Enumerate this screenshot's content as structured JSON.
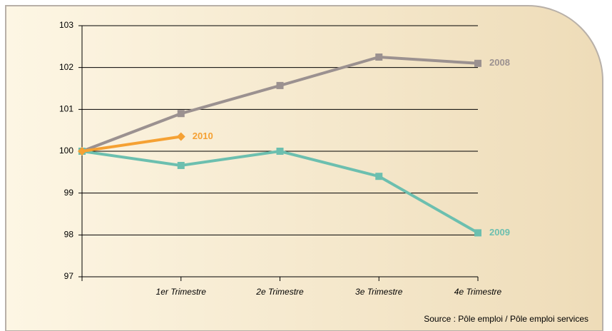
{
  "chart_data": {
    "type": "line",
    "categories": [
      null,
      "1er Trimestre",
      "2e Trimestre",
      "3e Trimestre",
      "4e Trimestre"
    ],
    "series": [
      {
        "name": "2008",
        "color": "#9b9190",
        "marker": "square",
        "values": [
          100,
          100.9,
          101.57,
          102.25,
          102.1
        ]
      },
      {
        "name": "2009",
        "color": "#6cbfaf",
        "marker": "square",
        "values": [
          100,
          99.66,
          100,
          99.4,
          98.05
        ]
      },
      {
        "name": "2010",
        "color": "#f5a133",
        "marker": "diamond",
        "values": [
          100,
          100.35,
          null,
          null,
          null
        ]
      }
    ],
    "ylim": [
      97,
      103
    ],
    "yticks": [
      97,
      98,
      99,
      100,
      101,
      102,
      103
    ],
    "grid": true,
    "source": "Source : Pôle emploi / Pôle emploi services"
  }
}
